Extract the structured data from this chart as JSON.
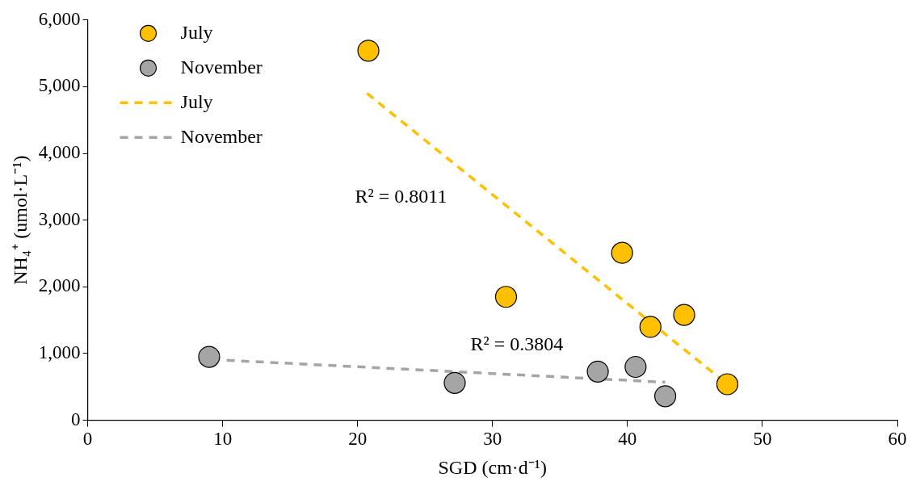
{
  "chart_data": {
    "type": "scatter",
    "xlabel": "SGD (cm·d⁻¹)",
    "ylabel": "NH₄⁺ (umol·L⁻¹)",
    "xlim": [
      0,
      60
    ],
    "xticks": [
      0,
      10,
      20,
      30,
      40,
      50,
      60
    ],
    "ylim": [
      0,
      6000
    ],
    "yticks": [
      0,
      {
        "value": 1000,
        "label": "1,000"
      },
      {
        "value": 2000,
        "label": "2,000"
      },
      {
        "value": 3000,
        "label": "3,000"
      },
      {
        "value": 4000,
        "label": "4,000"
      },
      {
        "value": 5000,
        "label": "5,000"
      },
      {
        "value": 6000,
        "label": "6,000"
      }
    ],
    "grid": false,
    "legend": "top left",
    "series": [
      {
        "name": "July",
        "marker": "circle",
        "color": "#ffc000",
        "x": [
          20.8,
          31.0,
          39.6,
          41.7,
          44.2,
          47.4
        ],
        "values": [
          5540,
          1850,
          2510,
          1400,
          1580,
          540
        ]
      },
      {
        "name": "November",
        "marker": "circle",
        "color": "#a5a5a5",
        "x": [
          9.0,
          27.2,
          37.8,
          40.6,
          42.8
        ],
        "values": [
          950,
          560,
          730,
          800,
          360
        ]
      },
      {
        "name": "July",
        "type": "line",
        "marker": "none",
        "line_style": "dashed",
        "color": "#ffc000",
        "x": [
          20.7,
          47.4
        ],
        "values": [
          4900,
          540
        ]
      },
      {
        "name": "November",
        "type": "line",
        "marker": "none",
        "line_style": "dashed",
        "color": "#a5a5a5",
        "x": [
          10.3,
          42.8
        ],
        "values": [
          900,
          570
        ]
      }
    ],
    "annotations": [
      "R² = 0.8011",
      "R² = 0.3804"
    ]
  }
}
